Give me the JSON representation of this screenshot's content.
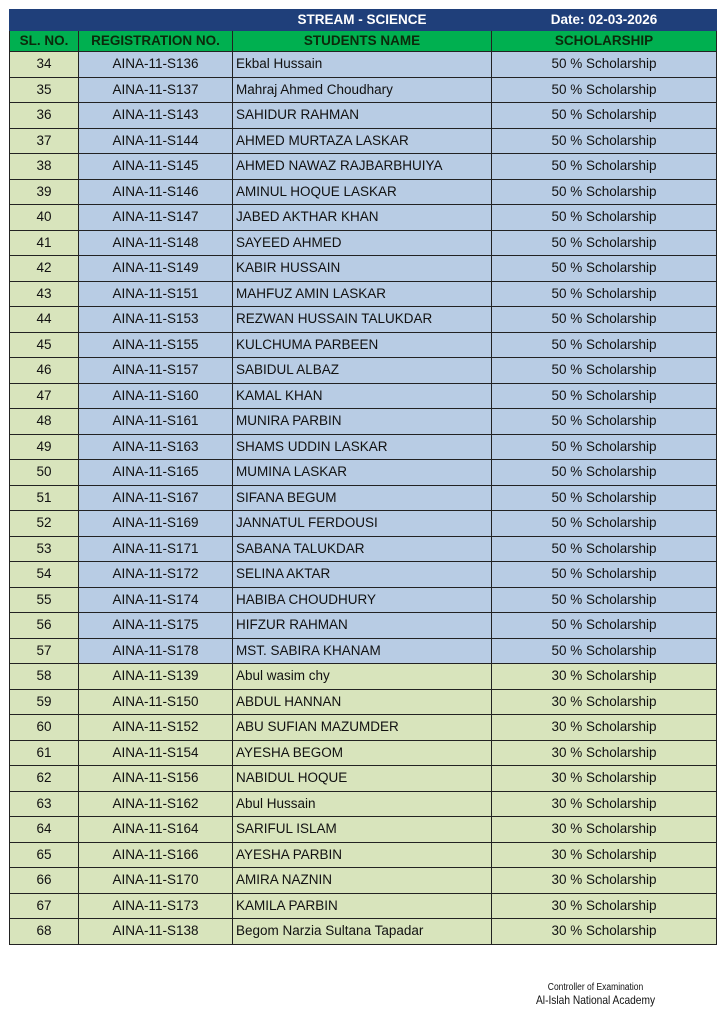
{
  "header": {
    "stream": "STREAM - SCIENCE",
    "date": "Date: 02-03-2026"
  },
  "columns": [
    "SL. NO.",
    "REGISTRATION NO.",
    "STUDENTS NAME",
    "SCHOLARSHIP"
  ],
  "colors": {
    "title_bg": "#1f3f7a",
    "header_bg": "#00b050",
    "fifty_row": "#b8cce4",
    "thirty_row": "#d8e4bc"
  },
  "rows": [
    {
      "sl": "34",
      "reg": "AINA-11-S136",
      "name": "Ekbal Hussain",
      "scholarship": "50 % Scholarship"
    },
    {
      "sl": "35",
      "reg": "AINA-11-S137",
      "name": "Mahraj Ahmed Choudhary",
      "scholarship": "50 % Scholarship"
    },
    {
      "sl": "36",
      "reg": "AINA-11-S143",
      "name": "SAHIDUR RAHMAN",
      "scholarship": "50 % Scholarship"
    },
    {
      "sl": "37",
      "reg": "AINA-11-S144",
      "name": "AHMED MURTAZA LASKAR",
      "scholarship": "50 % Scholarship"
    },
    {
      "sl": "38",
      "reg": "AINA-11-S145",
      "name": "AHMED NAWAZ RAJBARBHUIYA",
      "scholarship": "50 % Scholarship"
    },
    {
      "sl": "39",
      "reg": "AINA-11-S146",
      "name": "AMINUL HOQUE LASKAR",
      "scholarship": "50 % Scholarship"
    },
    {
      "sl": "40",
      "reg": "AINA-11-S147",
      "name": "JABED AKTHAR KHAN",
      "scholarship": "50 % Scholarship"
    },
    {
      "sl": "41",
      "reg": "AINA-11-S148",
      "name": "SAYEED AHMED",
      "scholarship": "50 % Scholarship"
    },
    {
      "sl": "42",
      "reg": "AINA-11-S149",
      "name": "KABIR HUSSAIN",
      "scholarship": "50 % Scholarship"
    },
    {
      "sl": "43",
      "reg": "AINA-11-S151",
      "name": "MAHFUZ AMIN LASKAR",
      "scholarship": "50 % Scholarship"
    },
    {
      "sl": "44",
      "reg": "AINA-11-S153",
      "name": "REZWAN HUSSAIN TALUKDAR",
      "scholarship": "50 % Scholarship"
    },
    {
      "sl": "45",
      "reg": "AINA-11-S155",
      "name": "KULCHUMA PARBEEN",
      "scholarship": "50 % Scholarship"
    },
    {
      "sl": "46",
      "reg": "AINA-11-S157",
      "name": "SABIDUL ALBAZ",
      "scholarship": "50 % Scholarship"
    },
    {
      "sl": "47",
      "reg": "AINA-11-S160",
      "name": "KAMAL KHAN",
      "scholarship": "50 % Scholarship"
    },
    {
      "sl": "48",
      "reg": "AINA-11-S161",
      "name": "MUNIRA PARBIN",
      "scholarship": "50 % Scholarship"
    },
    {
      "sl": "49",
      "reg": "AINA-11-S163",
      "name": "SHAMS UDDIN LASKAR",
      "scholarship": "50 % Scholarship"
    },
    {
      "sl": "50",
      "reg": "AINA-11-S165",
      "name": "MUMINA LASKAR",
      "scholarship": "50 % Scholarship"
    },
    {
      "sl": "51",
      "reg": "AINA-11-S167",
      "name": "SIFANA BEGUM",
      "scholarship": "50 % Scholarship"
    },
    {
      "sl": "52",
      "reg": "AINA-11-S169",
      "name": "JANNATUL FERDOUSI",
      "scholarship": "50 % Scholarship"
    },
    {
      "sl": "53",
      "reg": "AINA-11-S171",
      "name": "SABANA TALUKDAR",
      "scholarship": "50 % Scholarship"
    },
    {
      "sl": "54",
      "reg": "AINA-11-S172",
      "name": "SELINA AKTAR",
      "scholarship": "50 % Scholarship"
    },
    {
      "sl": "55",
      "reg": "AINA-11-S174",
      "name": "HABIBA CHOUDHURY",
      "scholarship": "50 % Scholarship"
    },
    {
      "sl": "56",
      "reg": "AINA-11-S175",
      "name": "HIFZUR RAHMAN",
      "scholarship": "50 % Scholarship"
    },
    {
      "sl": "57",
      "reg": "AINA-11-S178",
      "name": "MST. SABIRA KHANAM",
      "scholarship": "50 % Scholarship"
    },
    {
      "sl": "58",
      "reg": "AINA-11-S139",
      "name": "Abul wasim chy",
      "scholarship": "30 % Scholarship"
    },
    {
      "sl": "59",
      "reg": "AINA-11-S150",
      "name": "ABDUL HANNAN",
      "scholarship": "30 % Scholarship"
    },
    {
      "sl": "60",
      "reg": "AINA-11-S152",
      "name": "ABU SUFIAN MAZUMDER",
      "scholarship": "30 % Scholarship"
    },
    {
      "sl": "61",
      "reg": "AINA-11-S154",
      "name": "AYESHA BEGOM",
      "scholarship": "30 % Scholarship"
    },
    {
      "sl": "62",
      "reg": "AINA-11-S156",
      "name": "NABIDUL HOQUE",
      "scholarship": "30 % Scholarship"
    },
    {
      "sl": "63",
      "reg": "AINA-11-S162",
      "name": "Abul Hussain",
      "scholarship": "30 % Scholarship"
    },
    {
      "sl": "64",
      "reg": "AINA-11-S164",
      "name": "SARIFUL ISLAM",
      "scholarship": "30 % Scholarship"
    },
    {
      "sl": "65",
      "reg": "AINA-11-S166",
      "name": "AYESHA PARBIN",
      "scholarship": "30 % Scholarship"
    },
    {
      "sl": "66",
      "reg": "AINA-11-S170",
      "name": "AMIRA NAZNIN",
      "scholarship": "30 % Scholarship"
    },
    {
      "sl": "67",
      "reg": "AINA-11-S173",
      "name": "KAMILA PARBIN",
      "scholarship": "30 % Scholarship"
    },
    {
      "sl": "68",
      "reg": "AINA-11-S138",
      "name": "Begom Narzia Sultana Tapadar",
      "scholarship": "30 % Scholarship"
    }
  ],
  "footer": {
    "line1": "Controller of Examination",
    "line2": "Al-Islah National Academy"
  }
}
